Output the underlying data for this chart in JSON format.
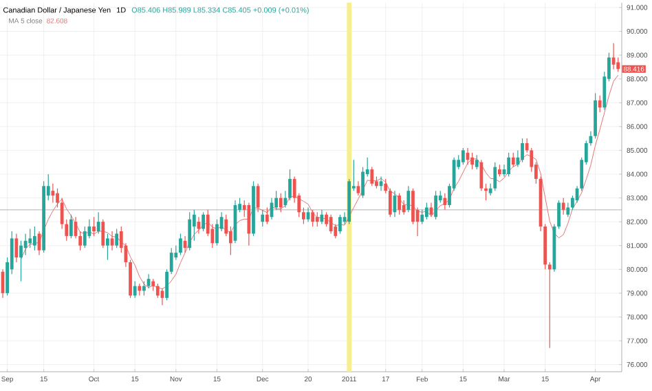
{
  "chart_data": {
    "type": "candlestick",
    "title": "Canadian Dollar / Japanese Yen",
    "subtitle": "1D",
    "annotations": [
      "O85.406 H85.989 L85.334 C85.405 +0.009 (+0.01%)",
      "82.608",
      "88.416"
    ],
    "categories": [
      null,
      "Sep",
      null,
      null,
      null,
      null,
      null,
      null,
      null,
      "15",
      null,
      null,
      null,
      null,
      null,
      null,
      null,
      null,
      null,
      null,
      "Oct",
      null,
      null,
      null,
      null,
      null,
      null,
      null,
      null,
      "15",
      null,
      null,
      null,
      null,
      null,
      null,
      null,
      null,
      "Nov",
      null,
      null,
      null,
      null,
      null,
      null,
      null,
      null,
      "15",
      null,
      null,
      null,
      null,
      null,
      null,
      null,
      null,
      null,
      "Dec",
      null,
      null,
      null,
      null,
      null,
      null,
      null,
      null,
      null,
      "20",
      null,
      null,
      null,
      null,
      null,
      null,
      null,
      null,
      "2011",
      null,
      null,
      null,
      null,
      null,
      null,
      null,
      "17",
      null,
      null,
      null,
      null,
      null,
      null,
      null,
      "Feb",
      null,
      null,
      null,
      null,
      null,
      null,
      null,
      null,
      "15",
      null,
      null,
      null,
      null,
      null,
      null,
      null,
      null,
      "Mar",
      null,
      null,
      null,
      null,
      null,
      null,
      null,
      null,
      "15",
      null,
      null,
      null,
      null,
      null,
      null,
      null,
      null,
      null,
      null,
      "Apr",
      null,
      null,
      null,
      null,
      null
    ],
    "ohlc": [
      [
        79.9,
        80.0,
        78.8,
        79.0
      ],
      [
        79.0,
        80.5,
        78.9,
        80.3
      ],
      [
        80.0,
        81.6,
        79.8,
        81.3
      ],
      [
        81.3,
        81.5,
        80.3,
        80.5
      ],
      [
        80.5,
        81.2,
        79.5,
        81.0
      ],
      [
        80.9,
        81.5,
        80.6,
        81.2
      ],
      [
        81.1,
        81.7,
        80.9,
        81.3
      ],
      [
        81.0,
        81.8,
        80.8,
        81.4
      ],
      [
        81.5,
        81.6,
        80.6,
        80.8
      ],
      [
        80.8,
        83.7,
        80.7,
        83.5
      ],
      [
        83.1,
        84.0,
        82.9,
        83.5
      ],
      [
        83.3,
        83.6,
        82.8,
        83.1
      ],
      [
        83.2,
        83.4,
        82.6,
        82.8
      ],
      [
        82.8,
        83.0,
        81.7,
        81.9
      ],
      [
        81.9,
        82.1,
        81.2,
        81.4
      ],
      [
        81.4,
        82.3,
        81.3,
        82.1
      ],
      [
        82.0,
        82.2,
        81.3,
        81.4
      ],
      [
        81.4,
        81.6,
        80.8,
        81.0
      ],
      [
        81.0,
        81.8,
        80.9,
        81.6
      ],
      [
        81.4,
        82.1,
        81.3,
        81.8
      ],
      [
        81.8,
        82.2,
        81.4,
        81.6
      ],
      [
        81.6,
        82.4,
        81.5,
        82.0
      ],
      [
        82.0,
        82.1,
        80.9,
        81.0
      ],
      [
        81.0,
        81.5,
        80.4,
        81.3
      ],
      [
        81.3,
        81.6,
        80.8,
        81.0
      ],
      [
        81.0,
        81.7,
        80.9,
        81.5
      ],
      [
        81.6,
        81.8,
        80.7,
        80.9
      ],
      [
        81.0,
        81.1,
        80.1,
        80.3
      ],
      [
        80.3,
        80.4,
        78.8,
        78.9
      ],
      [
        78.9,
        79.5,
        78.8,
        79.3
      ],
      [
        79.3,
        79.4,
        78.9,
        79.1
      ],
      [
        79.1,
        79.5,
        78.9,
        79.3
      ],
      [
        79.3,
        79.8,
        79.2,
        79.6
      ],
      [
        79.5,
        79.6,
        79.1,
        79.3
      ],
      [
        79.3,
        79.4,
        78.8,
        78.9
      ],
      [
        79.1,
        79.2,
        78.5,
        78.8
      ],
      [
        78.8,
        80.0,
        78.7,
        79.9
      ],
      [
        79.9,
        80.9,
        79.8,
        80.7
      ],
      [
        80.5,
        81.0,
        80.4,
        80.7
      ],
      [
        80.7,
        81.5,
        80.6,
        81.3
      ],
      [
        81.2,
        81.4,
        80.7,
        80.9
      ],
      [
        80.9,
        82.4,
        80.8,
        82.1
      ],
      [
        81.8,
        82.5,
        81.2,
        82.3
      ],
      [
        82.0,
        82.2,
        81.5,
        81.7
      ],
      [
        81.7,
        82.4,
        81.6,
        82.3
      ],
      [
        82.3,
        82.5,
        81.4,
        81.5
      ],
      [
        81.7,
        81.9,
        80.9,
        81.1
      ],
      [
        81.1,
        82.1,
        81.0,
        81.9
      ],
      [
        81.7,
        82.4,
        81.6,
        82.2
      ],
      [
        82.1,
        82.3,
        81.4,
        81.5
      ],
      [
        81.6,
        81.8,
        80.6,
        81.1
      ],
      [
        81.2,
        82.9,
        81.1,
        82.7
      ],
      [
        82.5,
        83.0,
        82.4,
        82.75
      ],
      [
        82.7,
        82.9,
        82.2,
        82.5
      ],
      [
        82.7,
        82.8,
        81.0,
        81.5
      ],
      [
        81.5,
        83.7,
        81.4,
        83.5
      ],
      [
        83.5,
        83.6,
        82.4,
        82.6
      ],
      [
        82.0,
        82.5,
        81.8,
        82.3
      ],
      [
        82.3,
        82.6,
        81.9,
        82.0
      ],
      [
        82.2,
        83.0,
        82.1,
        82.8
      ],
      [
        82.6,
        83.3,
        82.5,
        83.0
      ],
      [
        83.0,
        83.2,
        82.4,
        82.6
      ],
      [
        82.7,
        83.3,
        82.6,
        83.0
      ],
      [
        83.0,
        84.2,
        82.9,
        83.8
      ],
      [
        83.8,
        83.9,
        82.8,
        83.0
      ],
      [
        83.1,
        83.2,
        82.2,
        82.4
      ],
      [
        82.4,
        82.6,
        81.9,
        82.1
      ],
      [
        82.1,
        82.6,
        82.0,
        82.4
      ],
      [
        82.4,
        82.5,
        81.8,
        82.0
      ],
      [
        82.2,
        82.4,
        81.8,
        82.0
      ],
      [
        82.0,
        82.5,
        81.9,
        82.3
      ],
      [
        82.3,
        82.4,
        81.8,
        81.9
      ],
      [
        82.2,
        82.3,
        81.5,
        81.6
      ],
      [
        81.8,
        81.9,
        81.3,
        81.4
      ],
      [
        81.6,
        82.3,
        81.5,
        82.2
      ],
      [
        82.0,
        82.4,
        81.9,
        82.2
      ],
      [
        82.0,
        83.8,
        81.9,
        83.7
      ],
      [
        83.4,
        84.6,
        83.3,
        83.5
      ],
      [
        83.5,
        83.7,
        83.1,
        83.2
      ],
      [
        83.1,
        84.3,
        83.0,
        84.1
      ],
      [
        84.0,
        84.7,
        83.9,
        84.2
      ],
      [
        84.2,
        84.3,
        83.5,
        83.6
      ],
      [
        83.7,
        83.9,
        83.4,
        83.5
      ],
      [
        83.5,
        83.9,
        83.3,
        83.7
      ],
      [
        83.6,
        83.8,
        83.2,
        83.3
      ],
      [
        83.3,
        83.4,
        82.2,
        82.3
      ],
      [
        82.4,
        83.3,
        82.2,
        83.1
      ],
      [
        83.1,
        83.2,
        82.3,
        82.5
      ],
      [
        82.7,
        82.9,
        82.3,
        82.4
      ],
      [
        82.5,
        83.5,
        82.4,
        83.3
      ],
      [
        83.3,
        83.4,
        81.9,
        82.0
      ],
      [
        82.5,
        82.6,
        81.4,
        82.0
      ],
      [
        82.0,
        82.5,
        81.9,
        82.3
      ],
      [
        82.2,
        82.8,
        82.1,
        82.6
      ],
      [
        82.6,
        82.8,
        82.2,
        82.3
      ],
      [
        82.2,
        83.3,
        82.1,
        83.1
      ],
      [
        82.9,
        83.3,
        82.8,
        83.1
      ],
      [
        83.0,
        83.2,
        82.5,
        82.7
      ],
      [
        82.7,
        83.6,
        82.6,
        83.5
      ],
      [
        83.4,
        84.7,
        83.3,
        84.6
      ],
      [
        84.3,
        84.8,
        84.2,
        84.6
      ],
      [
        84.5,
        85.1,
        84.4,
        85.0
      ],
      [
        84.9,
        85.1,
        84.4,
        84.6
      ],
      [
        84.7,
        84.9,
        84.2,
        84.4
      ],
      [
        84.3,
        84.8,
        84.2,
        84.6
      ],
      [
        84.5,
        84.6,
        83.3,
        83.4
      ],
      [
        83.4,
        83.6,
        82.9,
        83.3
      ],
      [
        83.2,
        83.6,
        83.1,
        83.4
      ],
      [
        83.4,
        84.5,
        83.3,
        84.3
      ],
      [
        84.2,
        84.4,
        83.9,
        84.0
      ],
      [
        84.0,
        84.4,
        83.9,
        84.2
      ],
      [
        84.0,
        84.9,
        83.9,
        84.7
      ],
      [
        84.7,
        84.9,
        84.3,
        84.4
      ],
      [
        84.4,
        85.0,
        84.3,
        84.7
      ],
      [
        84.6,
        85.5,
        84.5,
        85.3
      ],
      [
        85.3,
        85.5,
        84.9,
        85.0
      ],
      [
        85.0,
        85.1,
        84.1,
        84.3
      ],
      [
        84.4,
        84.5,
        83.6,
        83.8
      ],
      [
        83.8,
        83.9,
        81.6,
        81.8
      ],
      [
        81.8,
        81.9,
        80.0,
        80.2
      ],
      [
        80.2,
        80.3,
        76.7,
        80.0
      ],
      [
        80.0,
        81.9,
        79.9,
        81.8
      ],
      [
        81.8,
        82.9,
        81.7,
        82.8
      ],
      [
        82.8,
        83.0,
        82.3,
        82.5
      ],
      [
        82.3,
        82.8,
        82.2,
        82.6
      ],
      [
        82.6,
        83.1,
        82.5,
        83.0
      ],
      [
        82.9,
        83.5,
        82.8,
        83.4
      ],
      [
        83.4,
        84.7,
        83.3,
        84.6
      ],
      [
        84.5,
        85.4,
        84.4,
        85.3
      ],
      [
        85.3,
        85.8,
        85.2,
        85.6
      ],
      [
        85.6,
        87.4,
        85.5,
        87.1
      ],
      [
        87.1,
        87.3,
        86.6,
        86.8
      ],
      [
        86.8,
        88.3,
        86.7,
        88.1
      ],
      [
        88.0,
        89.1,
        87.9,
        88.9
      ],
      [
        88.9,
        89.5,
        88.4,
        88.6
      ],
      [
        88.7,
        88.9,
        88.3,
        88.416
      ]
    ],
    "series": [
      {
        "type": "line",
        "name": "MA 5 close",
        "color": "#e57373",
        "values": [
          null,
          null,
          null,
          null,
          80.42,
          80.86,
          81.06,
          81.08,
          81.14,
          81.64,
          82.1,
          82.46,
          82.74,
          82.96,
          82.54,
          82.26,
          81.92,
          81.56,
          81.5,
          81.58,
          81.48,
          81.6,
          81.6,
          81.54,
          81.38,
          81.36,
          81.14,
          81.0,
          80.52,
          80.18,
          79.7,
          79.38,
          79.24,
          79.32,
          79.24,
          79.18,
          79.3,
          79.52,
          79.8,
          80.28,
          80.7,
          81.14,
          81.46,
          81.66,
          81.86,
          81.98,
          81.78,
          81.7,
          81.8,
          81.64,
          81.56,
          81.88,
          82.05,
          82.11,
          82.11,
          82.59,
          82.57,
          82.48,
          82.38,
          82.64,
          82.54,
          82.54,
          82.68,
          83.04,
          83.08,
          82.96,
          82.86,
          82.74,
          82.38,
          82.18,
          82.16,
          82.12,
          81.96,
          81.84,
          81.88,
          81.86,
          82.22,
          82.6,
          82.96,
          83.34,
          83.74,
          83.72,
          83.72,
          83.82,
          83.66,
          83.28,
          83.18,
          82.98,
          82.72,
          82.72,
          82.66,
          82.44,
          82.4,
          82.44,
          82.24,
          82.46,
          82.68,
          82.76,
          82.94,
          83.4,
          83.7,
          84.08,
          84.46,
          84.64,
          84.64,
          84.4,
          84.06,
          83.82,
          83.8,
          83.68,
          83.84,
          84.12,
          84.32,
          84.4,
          84.66,
          84.82,
          84.74,
          84.62,
          84.04,
          83.02,
          82.02,
          81.52,
          81.32,
          81.46,
          81.94,
          82.54,
          82.86,
          83.22,
          83.78,
          84.38,
          85.2,
          85.88,
          86.58,
          87.3,
          87.9,
          88.16
        ]
      }
    ],
    "ylim": [
      75.7,
      91.2
    ],
    "yticks": [
      {
        "value": 76,
        "label": "76.000"
      },
      {
        "value": 77,
        "label": "77.000"
      },
      {
        "value": 78,
        "label": "78.000"
      },
      {
        "value": 79,
        "label": "79.000"
      },
      {
        "value": 80,
        "label": "80.000"
      },
      {
        "value": 81,
        "label": "81.000"
      },
      {
        "value": 82,
        "label": "82.000"
      },
      {
        "value": 83,
        "label": "83.000"
      },
      {
        "value": 84,
        "label": "84.000"
      },
      {
        "value": 85,
        "label": "85.000"
      },
      {
        "value": 86,
        "label": "86.000"
      },
      {
        "value": 87,
        "label": "87.000"
      },
      {
        "value": 88,
        "label": "88.000"
      },
      {
        "value": 89,
        "label": "89.000"
      },
      {
        "value": 90,
        "label": "90.000"
      },
      {
        "value": 91,
        "label": "91.000"
      }
    ],
    "grid": true,
    "ref_lines": [
      {
        "axis": "y",
        "value": 82.5,
        "color": "#9e9e9e"
      }
    ],
    "bands": [
      {
        "axis": "x",
        "from": "2011",
        "to": "2011",
        "color": "#f7ef8f"
      }
    ]
  }
}
